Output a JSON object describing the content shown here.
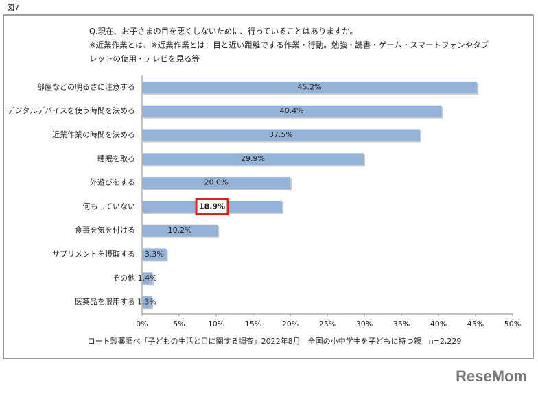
{
  "figure_label": "図7",
  "chart_data": {
    "type": "barh",
    "question": [
      "Q.現在、お子さまの目を悪くしないために、行っていることはありますか。",
      "※近業作業とは、※近業作業とは：目と近い距離でする作業・行動。勉強・読書・ゲーム・スマートフォンやタブ",
      "レットの使用・テレビを見る等"
    ],
    "categories": [
      "部屋などの明るさに注意する",
      "デジタルデバイスを使う時間を決める",
      "近業作業の時間を決める",
      "睡眠を取る",
      "外遊びをする",
      "何もしていない",
      "食事を気を付ける",
      "サプリメントを摂取する",
      "その他",
      "医薬品を服用する"
    ],
    "values": [
      45.2,
      40.4,
      37.5,
      29.9,
      20.0,
      18.9,
      10.2,
      3.3,
      1.4,
      1.3
    ],
    "value_labels": [
      "45.2%",
      "40.4%",
      "37.5%",
      "29.9%",
      "20.0%",
      "18.9%",
      "10.2%",
      "3.3%",
      "1.4%",
      "1.3%"
    ],
    "color": "#95b3d7",
    "highlight_index": 5,
    "highlight_color": "#e02020",
    "xlim": [
      0,
      50
    ],
    "xticks": [
      {
        "value": 0,
        "label": "0%"
      },
      {
        "value": 5,
        "label": "5%"
      },
      {
        "value": 10,
        "label": "10%"
      },
      {
        "value": 15,
        "label": "15%"
      },
      {
        "value": 20,
        "label": "20%"
      },
      {
        "value": 25,
        "label": "25%"
      },
      {
        "value": 30,
        "label": "30%"
      },
      {
        "value": 35,
        "label": "35%"
      },
      {
        "value": 40,
        "label": "40%"
      },
      {
        "value": 45,
        "label": "45%"
      },
      {
        "value": 50,
        "label": "50%"
      }
    ],
    "note": "ロート製薬調べ「子どもの生活と目に関する調査」2022年8月　全国の小中学生を子どもに持つ親　n=2,229"
  },
  "logo": "ReseMom"
}
